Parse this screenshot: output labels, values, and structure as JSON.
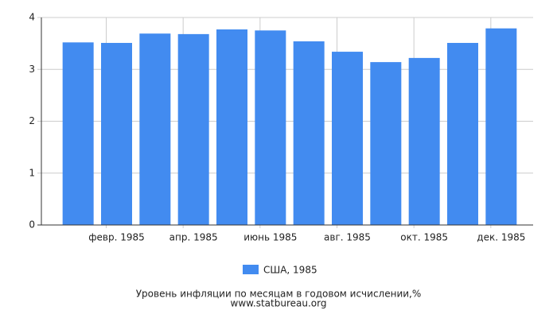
{
  "chart_data": {
    "type": "bar",
    "title": "Уровень инфляции по месяцам в годовом исчислении,%",
    "source": "www.statbureau.org",
    "categories": [
      null,
      "февр. 1985",
      null,
      "апр. 1985",
      null,
      "июнь 1985",
      null,
      "авг. 1985",
      null,
      "окт. 1985",
      null,
      "дек. 1985"
    ],
    "series": [
      {
        "name": "США, 1985",
        "color": "#428bf0",
        "values": [
          3.52,
          3.51,
          3.69,
          3.68,
          3.77,
          3.75,
          3.54,
          3.34,
          3.14,
          3.22,
          3.51,
          3.79
        ]
      }
    ],
    "ylim": [
      0,
      4
    ],
    "yticks": [
      0,
      1,
      2,
      3,
      4
    ],
    "grid": true,
    "legend": "bottom"
  }
}
